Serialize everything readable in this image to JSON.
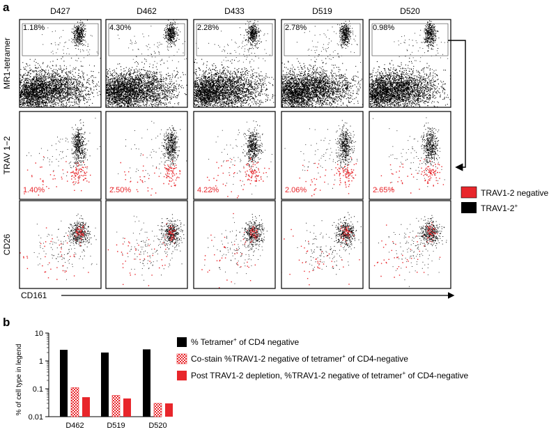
{
  "panel_a": {
    "label": "a",
    "donors": [
      "D427",
      "D462",
      "D433",
      "D519",
      "D520"
    ],
    "row_labels": [
      "MR1-tetramer",
      "TRAV 1−2",
      "CD26"
    ],
    "x_axis_label": "CD161",
    "tetramer_percent": [
      "1.18%",
      "4.30%",
      "2.28%",
      "2.78%",
      "0.98%"
    ],
    "trav_negative_percent": [
      "1.40%",
      "2.50%",
      "4.22%",
      "2.06%",
      "2.65%"
    ],
    "legend": {
      "negative_label": "TRAV1-2 negative",
      "positive_label_base": "TRAV1-2",
      "positive_label_sup": "+"
    },
    "colors": {
      "negative": "#e8262b",
      "positive": "#000000"
    }
  },
  "panel_b": {
    "label": "b",
    "legend": [
      {
        "pre": "% Tetramer",
        "sup": "+",
        "post": " of CD4 negative"
      },
      {
        "pre": "Co-stain %TRAV1-2 negative of tetramer",
        "sup": "+",
        "post": " of CD4-negative"
      },
      {
        "pre": "Post TRAV1-2 depletion, %TRAV1-2 negative of tetramer",
        "sup": "+",
        "post": " of CD4-negative"
      }
    ]
  },
  "chart_data": {
    "type": "bar",
    "ylabel": "% of cell type in legend",
    "yscale": "log",
    "ylim": [
      0.01,
      10
    ],
    "yticks": [
      "10",
      "1",
      "0.1",
      "0.01"
    ],
    "categories": [
      "D462",
      "D519",
      "D520"
    ],
    "series": [
      {
        "values": [
          2.5,
          2.0,
          2.6
        ],
        "color": "#000000",
        "pattern": "solid"
      },
      {
        "values": [
          0.11,
          0.058,
          0.03
        ],
        "color": "#e8262b",
        "pattern": "checker"
      },
      {
        "values": [
          0.05,
          0.045,
          0.03
        ],
        "color": "#e8262b",
        "pattern": "solid"
      }
    ]
  }
}
